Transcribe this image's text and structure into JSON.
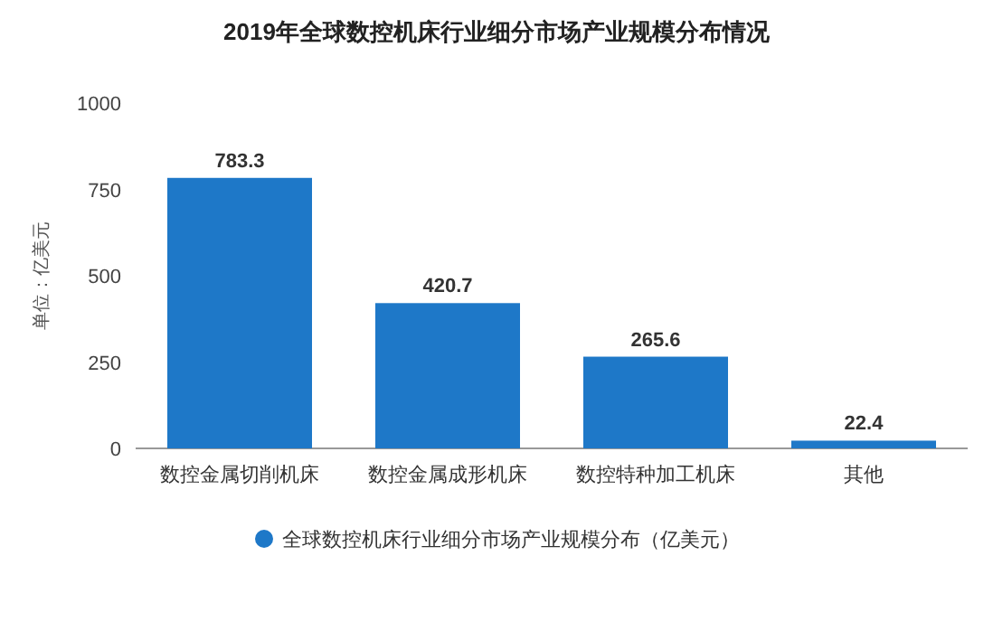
{
  "chart_data": {
    "type": "bar",
    "title": "2019年全球数控机床行业细分市场产业规模分布情况",
    "ylabel": "单位：亿美元",
    "categories": [
      "数控金属切削机床",
      "数控金属成形机床",
      "数控特种加工机床",
      "其他"
    ],
    "series": [
      {
        "name": "全球数控机床行业细分市场产业规模分布（亿美元）",
        "color": "#1e78c8",
        "values": [
          783.3,
          420.7,
          265.6,
          22.4
        ]
      }
    ],
    "ylim": [
      0,
      1000
    ],
    "yticks": [
      0,
      250,
      500,
      750,
      1000
    ],
    "data_labels": true,
    "legend": "bottom",
    "grid": false
  }
}
